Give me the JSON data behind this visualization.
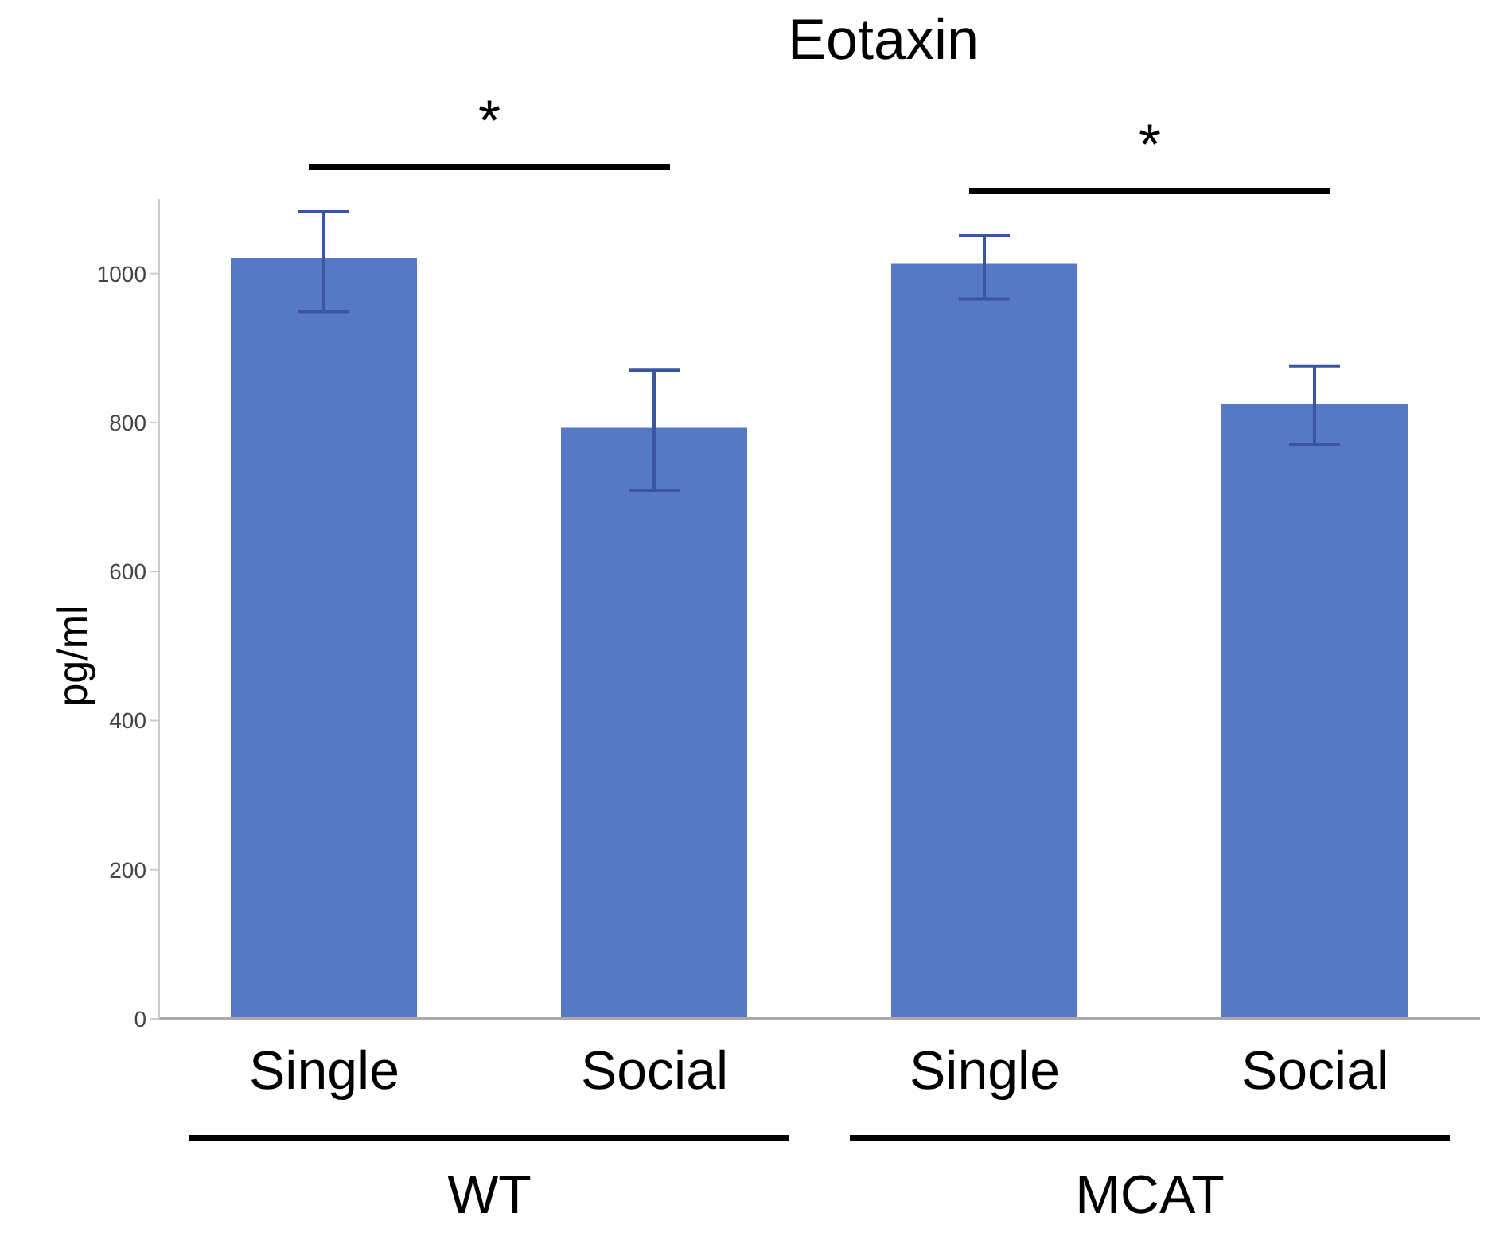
{
  "chart_data": {
    "type": "bar",
    "title": "Eotaxin",
    "ylabel": "pg/ml",
    "categories": [
      "Single",
      "Social",
      "Single",
      "Social"
    ],
    "values": [
      1021,
      793,
      1013,
      825
    ],
    "errors": [
      [
        949,
        1083
      ],
      [
        709,
        870
      ],
      [
        966,
        1051
      ],
      [
        771,
        876
      ]
    ],
    "color": "#5778c5",
    "ylim": [
      0,
      1100
    ],
    "yticks": [
      0,
      200,
      400,
      600,
      800,
      1000
    ],
    "annotations": [
      "*",
      "*",
      "WT",
      "MCAT"
    ]
  }
}
